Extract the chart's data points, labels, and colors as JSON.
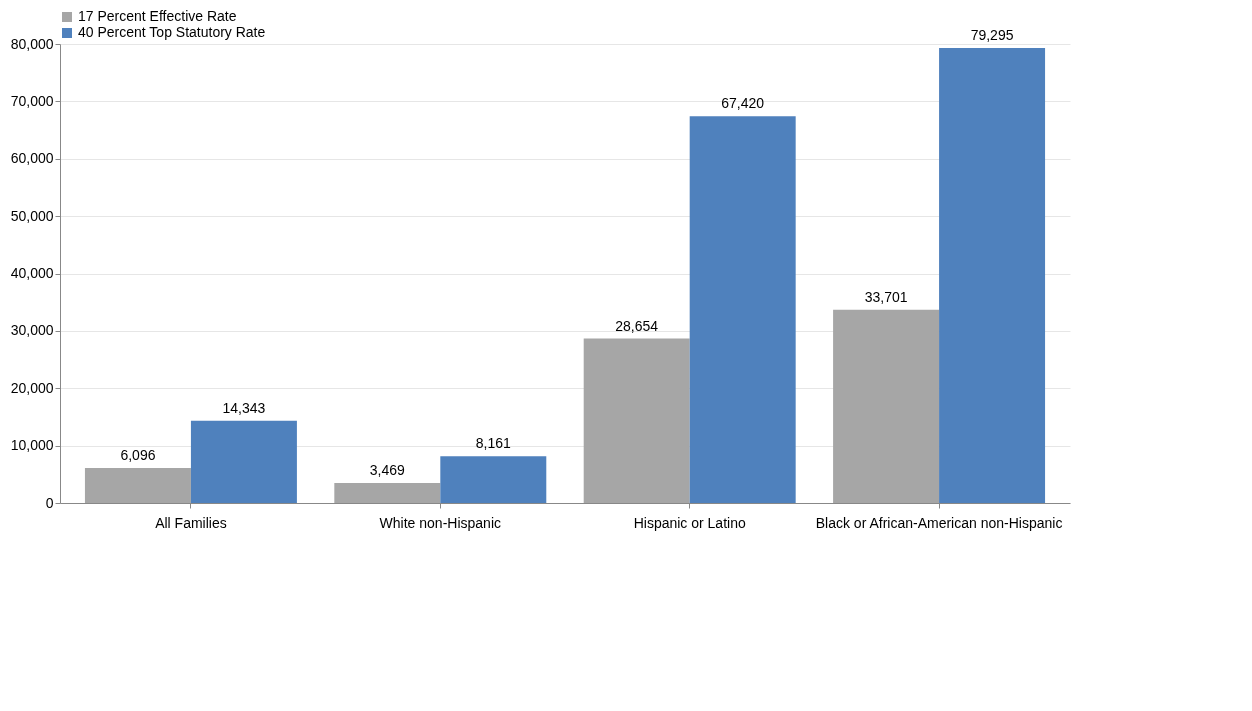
{
  "chart_data": {
    "type": "bar",
    "categories": [
      "All Families",
      "White non-Hispanic",
      "Hispanic or Latino",
      "Black or African-American non-Hispanic"
    ],
    "series": [
      {
        "name": "17 Percent Effective Rate",
        "color": "#a6a6a6",
        "values": [
          6096,
          3469,
          28654,
          33701
        ],
        "value_labels": [
          "6,096",
          "3,469",
          "28,654",
          "33,701"
        ]
      },
      {
        "name": "40 Percent Top Statutory Rate",
        "color": "#4f81bd",
        "values": [
          14343,
          8161,
          67420,
          79295
        ],
        "value_labels": [
          "14,343",
          "8,161",
          "67,420",
          "79,295"
        ]
      }
    ],
    "ylim": [
      0,
      80000
    ],
    "yticks": [
      0,
      {
        "value": 10000,
        "label": "10,000"
      },
      {
        "value": 20000,
        "label": "20,000"
      },
      {
        "value": 30000,
        "label": "30,000"
      },
      {
        "value": 40000,
        "label": "40,000"
      },
      {
        "value": 50000,
        "label": "50,000"
      },
      {
        "value": 60000,
        "label": "60,000"
      },
      {
        "value": 70000,
        "label": "70,000"
      },
      {
        "value": 80000,
        "label": "80,000"
      }
    ],
    "grid": "y",
    "legend": "top"
  }
}
